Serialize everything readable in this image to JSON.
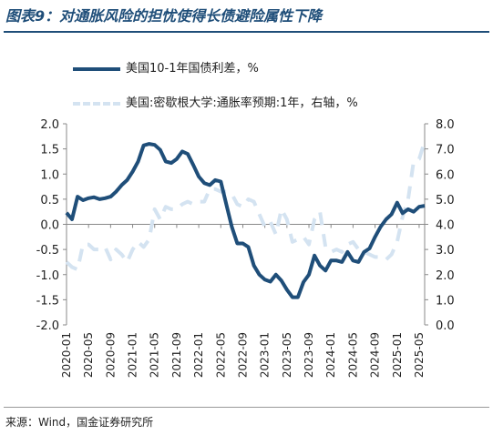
{
  "title": "图表9：对通胀风险的担忧使得长债避险属性下降",
  "source": "来源：Wind，国金证券研究所",
  "chart_data": {
    "type": "line",
    "title": "",
    "xlabel": "",
    "ylabel": "",
    "x_tick_labels": [
      "2020-01",
      "2020-05",
      "2020-09",
      "2021-01",
      "2021-05",
      "2021-09",
      "2022-01",
      "2022-05",
      "2022-09",
      "2023-01",
      "2023-05",
      "2023-09",
      "2024-01",
      "2024-05",
      "2024-09",
      "2025-01",
      "2025-05"
    ],
    "y_left": {
      "range": [
        -2.0,
        2.0
      ],
      "ticks": [
        "2.0",
        "1.5",
        "1.0",
        "0.5",
        "0.0",
        "-0.5",
        "-1.0",
        "-1.5",
        "-2.0"
      ]
    },
    "y_right": {
      "range": [
        0.0,
        8.0
      ],
      "ticks": [
        "8.0",
        "7.0",
        "6.0",
        "5.0",
        "4.0",
        "3.0",
        "2.0",
        "1.0",
        "0.0"
      ]
    },
    "grid": false,
    "legend_position": "top",
    "series": [
      {
        "name": "美国10-1年国债利差，%",
        "axis": "left",
        "color": "#1f4e79",
        "style": "solid",
        "x": [
          "2020-01",
          "2020-02",
          "2020-03",
          "2020-04",
          "2020-05",
          "2020-06",
          "2020-07",
          "2020-08",
          "2020-09",
          "2020-10",
          "2020-11",
          "2020-12",
          "2021-01",
          "2021-02",
          "2021-03",
          "2021-04",
          "2021-05",
          "2021-06",
          "2021-07",
          "2021-08",
          "2021-09",
          "2021-10",
          "2021-11",
          "2021-12",
          "2022-01",
          "2022-02",
          "2022-03",
          "2022-04",
          "2022-05",
          "2022-06",
          "2022-07",
          "2022-08",
          "2022-09",
          "2022-10",
          "2022-11",
          "2022-12",
          "2023-01",
          "2023-02",
          "2023-03",
          "2023-04",
          "2023-05",
          "2023-06",
          "2023-07",
          "2023-08",
          "2023-09",
          "2023-10",
          "2023-11",
          "2023-12",
          "2024-01",
          "2024-02",
          "2024-03",
          "2024-04",
          "2024-05",
          "2024-06",
          "2024-07",
          "2024-08",
          "2024-09",
          "2024-10",
          "2024-11",
          "2024-12",
          "2025-01",
          "2025-02",
          "2025-03",
          "2025-04",
          "2025-05",
          "2025-06"
        ],
        "values": [
          0.23,
          0.1,
          0.55,
          0.48,
          0.52,
          0.54,
          0.5,
          0.52,
          0.55,
          0.65,
          0.78,
          0.88,
          1.05,
          1.25,
          1.57,
          1.6,
          1.58,
          1.48,
          1.25,
          1.22,
          1.3,
          1.45,
          1.4,
          1.18,
          0.95,
          0.82,
          0.78,
          0.88,
          0.85,
          0.4,
          -0.05,
          -0.38,
          -0.38,
          -0.45,
          -0.82,
          -1.0,
          -1.1,
          -1.14,
          -1.0,
          -1.12,
          -1.3,
          -1.45,
          -1.45,
          -1.15,
          -1.0,
          -0.62,
          -0.82,
          -0.92,
          -0.72,
          -0.72,
          -0.75,
          -0.55,
          -0.72,
          -0.75,
          -0.55,
          -0.48,
          -0.25,
          -0.05,
          0.1,
          0.2,
          0.43,
          0.22,
          0.3,
          0.25,
          0.35,
          0.37
        ]
      },
      {
        "name": "美国:密歇根大学:通胀率预期:1年，右轴，%",
        "axis": "right",
        "color": "#d4e3f1",
        "style": "dashed",
        "x": [
          "2020-01",
          "2020-02",
          "2020-03",
          "2020-04",
          "2020-05",
          "2020-06",
          "2020-07",
          "2020-08",
          "2020-09",
          "2020-10",
          "2020-11",
          "2020-12",
          "2021-01",
          "2021-02",
          "2021-03",
          "2021-04",
          "2021-05",
          "2021-06",
          "2021-07",
          "2021-08",
          "2021-09",
          "2021-10",
          "2021-11",
          "2021-12",
          "2022-01",
          "2022-02",
          "2022-03",
          "2022-04",
          "2022-05",
          "2022-06",
          "2022-07",
          "2022-08",
          "2022-09",
          "2022-10",
          "2022-11",
          "2022-12",
          "2023-01",
          "2023-02",
          "2023-03",
          "2023-04",
          "2023-05",
          "2023-06",
          "2023-07",
          "2023-08",
          "2023-09",
          "2023-10",
          "2023-11",
          "2023-12",
          "2024-01",
          "2024-02",
          "2024-03",
          "2024-04",
          "2024-05",
          "2024-06",
          "2024-07",
          "2024-08",
          "2024-09",
          "2024-10",
          "2024-11",
          "2024-12",
          "2025-01",
          "2025-02",
          "2025-03",
          "2025-04",
          "2025-05",
          "2025-06"
        ],
        "values": [
          2.5,
          2.3,
          2.2,
          3.2,
          3.2,
          3.0,
          3.0,
          3.1,
          2.6,
          3.0,
          2.8,
          2.5,
          3.0,
          3.3,
          3.1,
          3.4,
          4.6,
          4.2,
          4.7,
          4.6,
          4.6,
          4.8,
          4.9,
          4.8,
          4.9,
          4.9,
          5.4,
          5.4,
          5.3,
          5.3,
          5.2,
          4.8,
          4.7,
          5.0,
          4.9,
          4.4,
          3.9,
          4.1,
          3.6,
          4.6,
          4.2,
          3.3,
          3.4,
          3.5,
          3.2,
          4.2,
          4.5,
          3.1,
          2.9,
          3.0,
          2.9,
          3.2,
          3.3,
          3.0,
          2.9,
          2.8,
          2.7,
          2.7,
          2.6,
          2.8,
          3.3,
          4.3,
          5.0,
          6.5,
          6.6,
          7.3
        ]
      }
    ]
  }
}
